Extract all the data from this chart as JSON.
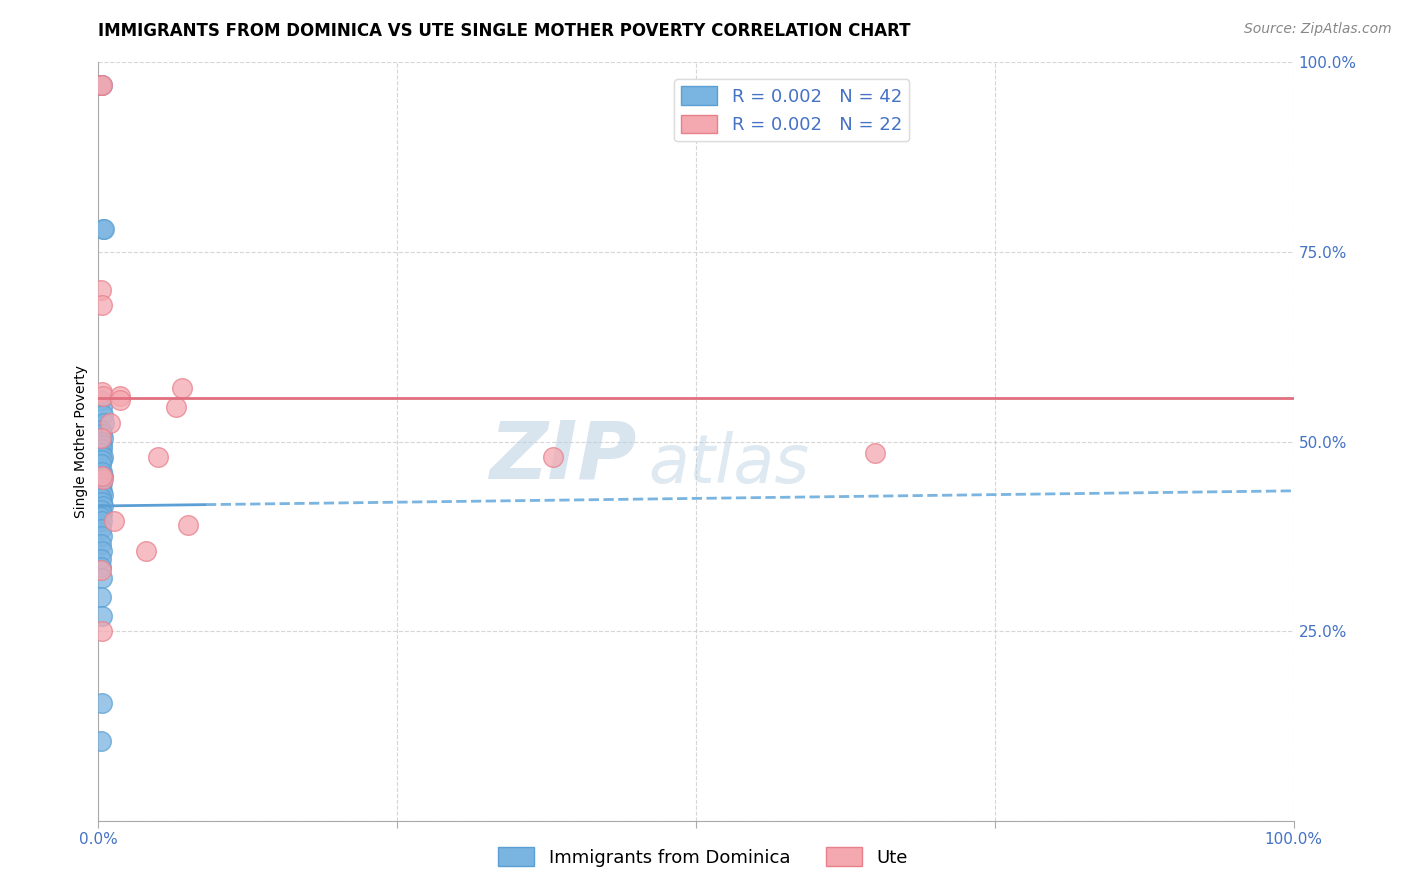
{
  "title": "IMMIGRANTS FROM DOMINICA VS UTE SINGLE MOTHER POVERTY CORRELATION CHART",
  "source": "Source: ZipAtlas.com",
  "ylabel": "Single Mother Poverty",
  "xlim": [
    0.0,
    1.0
  ],
  "ylim": [
    0.0,
    1.0
  ],
  "xticks": [
    0.0,
    0.25,
    0.5,
    0.75,
    1.0
  ],
  "yticks": [
    0.0,
    0.25,
    0.5,
    0.75,
    1.0
  ],
  "grid_color": "#cccccc",
  "background_color": "#ffffff",
  "blue_color": "#7ab4e0",
  "blue_edge_color": "#5b9fd4",
  "pink_color": "#f4a8b0",
  "pink_edge_color": "#e8808c",
  "blue_R": "0.002",
  "blue_N": "42",
  "pink_R": "0.002",
  "pink_N": "22",
  "blue_scatter_x": [
    0.002,
    0.003,
    0.004,
    0.005,
    0.002,
    0.003,
    0.004,
    0.005,
    0.002,
    0.003,
    0.004,
    0.002,
    0.003,
    0.003,
    0.002,
    0.004,
    0.003,
    0.002,
    0.003,
    0.004,
    0.003,
    0.002,
    0.003,
    0.004,
    0.002,
    0.003,
    0.004,
    0.002,
    0.003,
    0.002,
    0.003,
    0.002,
    0.003,
    0.002,
    0.003,
    0.002,
    0.002,
    0.003,
    0.002,
    0.003,
    0.003,
    0.002
  ],
  "blue_scatter_y": [
    0.97,
    0.97,
    0.78,
    0.78,
    0.555,
    0.545,
    0.535,
    0.525,
    0.515,
    0.51,
    0.505,
    0.5,
    0.495,
    0.49,
    0.485,
    0.48,
    0.475,
    0.47,
    0.46,
    0.455,
    0.445,
    0.44,
    0.435,
    0.43,
    0.425,
    0.42,
    0.415,
    0.41,
    0.405,
    0.4,
    0.395,
    0.385,
    0.375,
    0.365,
    0.355,
    0.345,
    0.335,
    0.32,
    0.295,
    0.27,
    0.155,
    0.105
  ],
  "pink_scatter_x": [
    0.002,
    0.003,
    0.002,
    0.003,
    0.003,
    0.004,
    0.018,
    0.018,
    0.01,
    0.002,
    0.065,
    0.07,
    0.013,
    0.075,
    0.38,
    0.65,
    0.04,
    0.05,
    0.003,
    0.004,
    0.002,
    0.003
  ],
  "pink_scatter_y": [
    0.97,
    0.97,
    0.7,
    0.68,
    0.565,
    0.56,
    0.56,
    0.555,
    0.525,
    0.505,
    0.545,
    0.57,
    0.395,
    0.39,
    0.48,
    0.485,
    0.355,
    0.48,
    0.25,
    0.45,
    0.33,
    0.455
  ],
  "blue_trend_x0": 0.0,
  "blue_trend_x_break": 0.09,
  "blue_trend_x1": 1.0,
  "blue_trend_y0": 0.415,
  "blue_trend_y1": 0.435,
  "pink_trend_x0": 0.0,
  "pink_trend_x1": 1.0,
  "pink_trend_y0": 0.558,
  "pink_trend_y1": 0.558,
  "legend_blue_label": "R = 0.002   N = 42",
  "legend_pink_label": "R = 0.002   N = 22",
  "bottom_legend_blue": "Immigrants from Dominica",
  "bottom_legend_pink": "Ute",
  "watermark_text": "ZIP",
  "watermark_text2": "atlas",
  "watermark_color": "#c5d8e8",
  "title_fontsize": 12,
  "axis_label_fontsize": 10,
  "tick_fontsize": 11,
  "legend_fontsize": 13,
  "source_fontsize": 10,
  "tick_color": "#4472c4"
}
